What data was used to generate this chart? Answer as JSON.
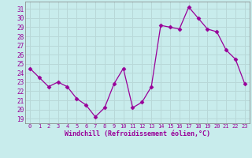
{
  "x": [
    0,
    1,
    2,
    3,
    4,
    5,
    6,
    7,
    8,
    9,
    10,
    11,
    12,
    13,
    14,
    15,
    16,
    17,
    18,
    19,
    20,
    21,
    22,
    23
  ],
  "y": [
    24.5,
    23.5,
    22.5,
    23,
    22.5,
    21.2,
    20.5,
    19.2,
    20.2,
    22.8,
    24.5,
    20.2,
    20.8,
    22.5,
    29.2,
    29.0,
    28.8,
    31.2,
    30.0,
    28.8,
    28.5,
    26.5,
    25.5,
    22.8
  ],
  "line_color": "#990099",
  "marker": "D",
  "marker_size": 2.5,
  "bg_color": "#c8ecec",
  "grid_color": "#b8d8d8",
  "xlabel": "Windchill (Refroidissement éolien,°C)",
  "ylabel_ticks": [
    19,
    20,
    21,
    22,
    23,
    24,
    25,
    26,
    27,
    28,
    29,
    30,
    31
  ],
  "ylim": [
    18.5,
    31.8
  ],
  "xlim": [
    -0.5,
    23.5
  ],
  "xticks": [
    0,
    1,
    2,
    3,
    4,
    5,
    6,
    7,
    8,
    9,
    10,
    11,
    12,
    13,
    14,
    15,
    16,
    17,
    18,
    19,
    20,
    21,
    22,
    23
  ],
  "axis_color": "#990099",
  "tick_color": "#990099",
  "label_color": "#990099",
  "spine_color": "#808080"
}
